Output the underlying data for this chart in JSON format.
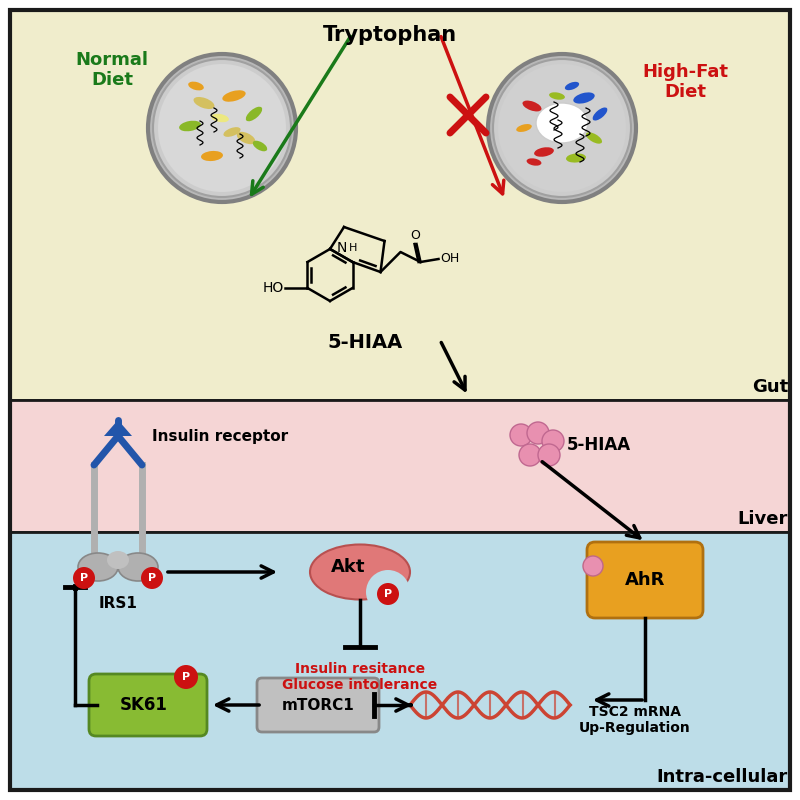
{
  "bg_gut": "#f0edcc",
  "bg_liver": "#f5d5d5",
  "bg_cell": "#bddde8",
  "border_color": "#1a1a1a",
  "gut_label": "Gut",
  "liver_label": "Liver",
  "cell_label": "Intra-cellular",
  "tryptophan_label": "Tryptophan",
  "normal_diet_label": "Normal\nDiet",
  "highfat_diet_label": "High-Fat\nDiet",
  "hiaa_label": "5-HIAA",
  "insulin_receptor_label": "Insulin receptor",
  "irs1_label": "IRS1",
  "akt_label": "Akt",
  "ahr_label": "AhR",
  "mtorc1_label": "mTORC1",
  "sk61_label": "SK61",
  "tsc2_label": "TSC2 mRNA\nUp-Regulation",
  "insulin_resistance_label": "Insulin resitance\nGlucose intolerance",
  "green_color": "#1a7a1a",
  "red_color": "#cc1111",
  "blue_color": "#2255aa",
  "pink_color": "#e890b0",
  "salmon_color": "#e07878",
  "orange_color": "#e8a020",
  "green_shape": "#88bb33",
  "gray_color": "#b0b0b0",
  "dna_color": "#cc4433",
  "mtor_color": "#c0c0c0"
}
